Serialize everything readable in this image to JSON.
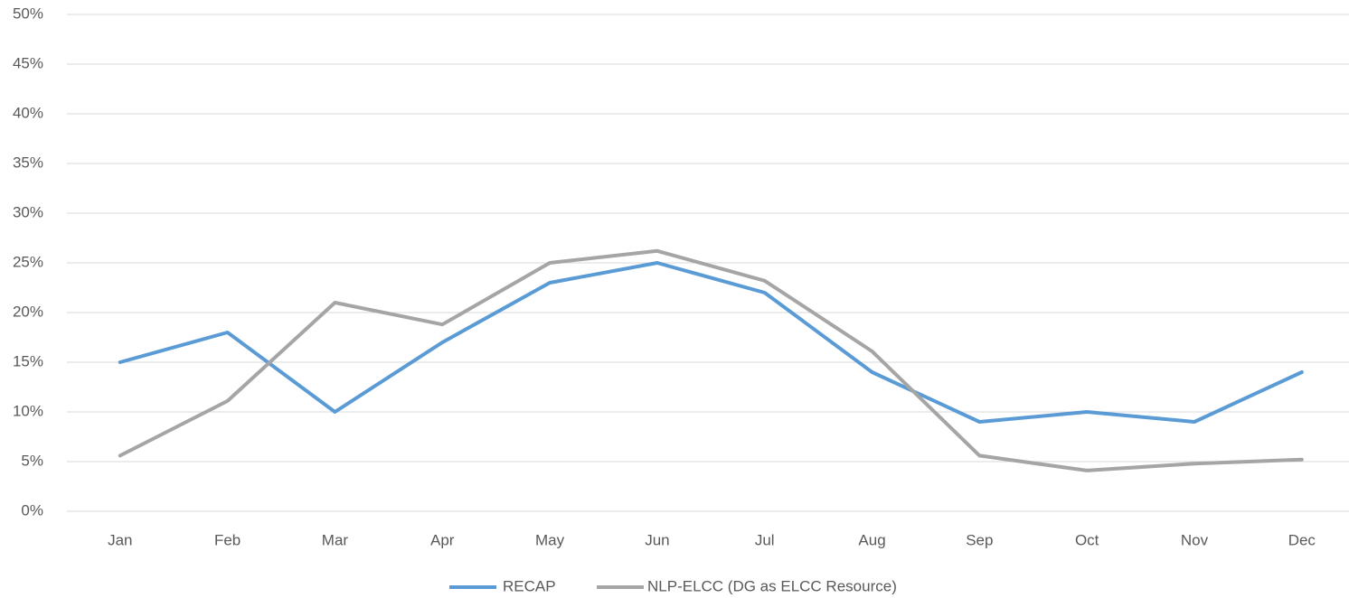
{
  "chart_data": {
    "type": "line",
    "categories": [
      "Jan",
      "Feb",
      "Mar",
      "Apr",
      "May",
      "Jun",
      "Jul",
      "Aug",
      "Sep",
      "Oct",
      "Nov",
      "Dec"
    ],
    "series": [
      {
        "name": "RECAP",
        "color": "#5b9bd5",
        "values": [
          15,
          18,
          10,
          17,
          23,
          25,
          22,
          14,
          9,
          10,
          9,
          14
        ]
      },
      {
        "name": "NLP-ELCC (DG as ELCC Resource)",
        "color": "#a5a5a5",
        "values": [
          5.6,
          11.1,
          21,
          18.8,
          25,
          26.2,
          23.2,
          16.1,
          5.6,
          4.1,
          4.8,
          5.2
        ]
      }
    ],
    "ylim": [
      0,
      50
    ],
    "yticks": [
      {
        "value": 0,
        "label": "0%"
      },
      {
        "value": 5,
        "label": "5%"
      },
      {
        "value": 10,
        "label": "10%"
      },
      {
        "value": 15,
        "label": "15%"
      },
      {
        "value": 20,
        "label": "20%"
      },
      {
        "value": 25,
        "label": "25%"
      },
      {
        "value": 30,
        "label": "30%"
      },
      {
        "value": 35,
        "label": "35%"
      },
      {
        "value": 40,
        "label": "40%"
      },
      {
        "value": 45,
        "label": "45%"
      },
      {
        "value": 50,
        "label": "50%"
      }
    ],
    "grid": true,
    "legend": "bottom"
  }
}
